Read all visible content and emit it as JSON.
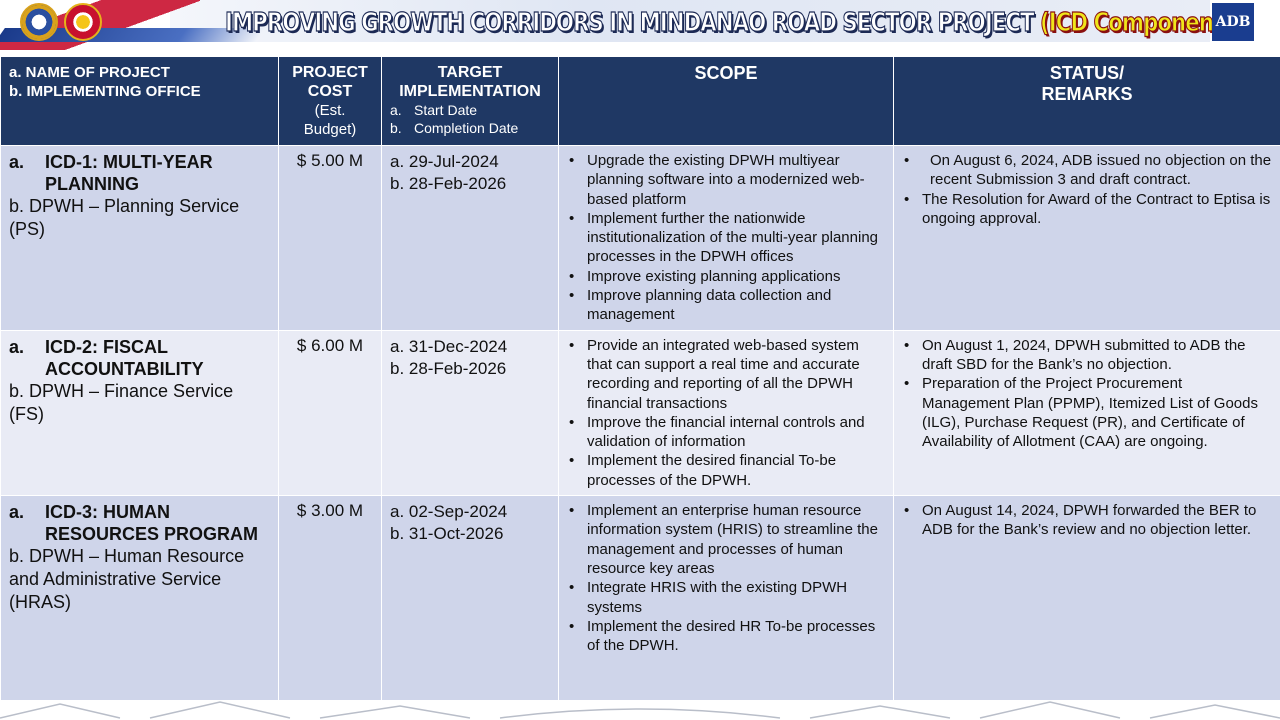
{
  "header": {
    "title_main": "IMPROVING GROWTH CORRIDORS IN MINDANAO ROAD SECTOR PROJECT",
    "title_accent": "(ICD Component)",
    "adb_logo_text": "ADB"
  },
  "table": {
    "headers": {
      "name_a": "a. NAME OF PROJECT",
      "name_b": "b. IMPLEMENTING OFFICE",
      "cost_main": "PROJECT COST",
      "cost_sub": "(Est. Budget)",
      "impl_main": "TARGET IMPLEMENTATION",
      "impl_start_label": "a.",
      "impl_start": "Start Date",
      "impl_end_label": "b.",
      "impl_end": "Completion Date",
      "scope": "SCOPE",
      "status_line1": "STATUS/",
      "status_line2": "REMARKS"
    },
    "rows": [
      {
        "name_prefix": "a.",
        "name": "ICD-1: MULTI-YEAR PLANNING",
        "office": "b. DPWH – Planning Service (PS)",
        "cost": "$ 5.00 M",
        "start": "a. 29-Jul-2024",
        "end": "b. 28-Feb-2026",
        "scope": [
          "Upgrade the existing DPWH multiyear planning software into a modernized web-based platform",
          "Implement further the nationwide institutionalization of the multi-year planning processes in the DPWH offices",
          "Improve existing planning applications",
          "Improve planning data collection and management"
        ],
        "status": [
          " On August 6, 2024, ADB issued no objection on the recent Submission 3 and draft contract.",
          "The  Resolution for Award of the Contract to Eptisa is ongoing approval."
        ]
      },
      {
        "name_prefix": "a.",
        "name": "ICD-2: FISCAL ACCOUNTABILITY",
        "office": "b. DPWH – Finance Service (FS)",
        "cost": "$ 6.00 M",
        "start": "a. 31-Dec-2024",
        "end": "b. 28-Feb-2026",
        "scope": [
          "Provide an integrated web-based system that can support a real time and accurate recording and reporting of all the DPWH financial transactions",
          "Improve the financial internal controls and validation of information",
          "Implement the desired financial To-be processes of the DPWH."
        ],
        "status": [
          "On August 1, 2024, DPWH submitted to ADB the draft SBD for the Bank’s no objection.",
          "Preparation of the Project Procurement Management Plan (PPMP), Itemized List of Goods (ILG), Purchase Request (PR), and Certificate of Availability of Allotment (CAA) are ongoing."
        ]
      },
      {
        "name_prefix": "a.",
        "name": "ICD-3: HUMAN RESOURCES PROGRAM",
        "office": "b. DPWH – Human Resource and Administrative Service (HRAS)",
        "cost": "$ 3.00 M",
        "start": "a. 02-Sep-2024",
        "end": "b. 31-Oct-2026",
        "scope": [
          "Implement an enterprise human resource information system (HRIS) to streamline the management and processes of human resource key areas",
          "Integrate HRIS with the existing DPWH systems",
          "Implement the desired HR To-be processes of the DPWH."
        ],
        "status": [
          "On August 14, 2024, DPWH forwarded the BER to ADB for the Bank’s review and no objection letter."
        ]
      }
    ]
  },
  "colors": {
    "header_bg": "#1f3864",
    "row_dark": "#cfd5ea",
    "row_light": "#e9ebf5",
    "title_accent": "#f0e61a"
  }
}
